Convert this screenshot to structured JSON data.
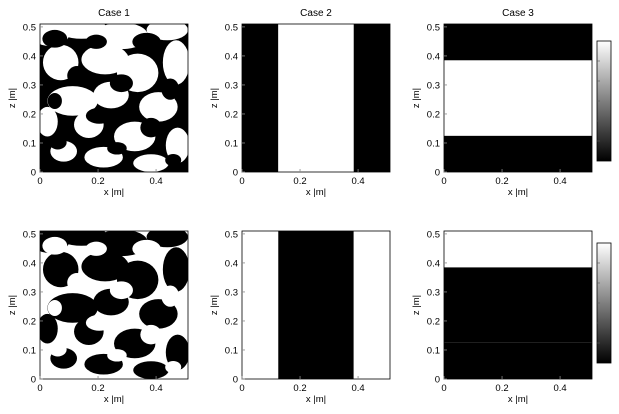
{
  "chart_data": [
    {
      "type": "heatmap",
      "title": "Case 1",
      "xlabel": "x |m|",
      "ylabel": "z |m|",
      "xlim": [
        0,
        0.51
      ],
      "ylim": [
        0,
        0.51
      ],
      "xticks": [
        "0",
        "0.2",
        "0.4"
      ],
      "yticks": [
        "0",
        "0.1",
        "0.2",
        "0.3",
        "0.4",
        "0.5"
      ],
      "pattern": "random binary (black/white) field",
      "inverted": false
    },
    {
      "type": "heatmap",
      "title": "Case 2",
      "xlabel": "x |m|",
      "ylabel": "z |m|",
      "xlim": [
        0,
        0.51
      ],
      "ylim": [
        0,
        0.51
      ],
      "xticks": [
        "0",
        "0.2",
        "0.4"
      ],
      "yticks": [
        "0",
        "0.1",
        "0.2",
        "0.3",
        "0.4",
        "0.5"
      ],
      "pattern": "vertical layers",
      "layers": [
        {
          "from": 0,
          "to": 0.125,
          "color": "black"
        },
        {
          "from": 0.125,
          "to": 0.385,
          "color": "white"
        },
        {
          "from": 0.385,
          "to": 0.51,
          "color": "black"
        }
      ]
    },
    {
      "type": "heatmap",
      "title": "Case 3",
      "xlabel": "x |m|",
      "ylabel": "z |m|",
      "xlim": [
        0,
        0.51
      ],
      "ylim": [
        0,
        0.51
      ],
      "xticks": [
        "0",
        "0.2",
        "0.4"
      ],
      "yticks": [
        "0",
        "0.1",
        "0.2",
        "0.3",
        "0.4",
        "0.5"
      ],
      "pattern": "horizontal layers",
      "layers": [
        {
          "from": 0,
          "to": 0.125,
          "color": "black"
        },
        {
          "from": 0.125,
          "to": 0.385,
          "color": "white"
        },
        {
          "from": 0.385,
          "to": 0.51,
          "color": "black"
        }
      ],
      "colorbar": true
    },
    {
      "type": "heatmap",
      "title": "",
      "xlabel": "x |m|",
      "ylabel": "z |m|",
      "xlim": [
        0,
        0.51
      ],
      "ylim": [
        0,
        0.51
      ],
      "xticks": [
        "0",
        "0.2",
        "0.4"
      ],
      "yticks": [
        "0",
        "0.1",
        "0.2",
        "0.3",
        "0.4",
        "0.5"
      ],
      "pattern": "random binary (black/white) field",
      "inverted": true
    },
    {
      "type": "heatmap",
      "title": "",
      "xlabel": "x |m|",
      "ylabel": "z |m|",
      "xlim": [
        0,
        0.51
      ],
      "ylim": [
        0,
        0.51
      ],
      "xticks": [
        "0",
        "0.2",
        "0.4"
      ],
      "yticks": [
        "0",
        "0.1",
        "0.2",
        "0.3",
        "0.4",
        "0.5"
      ],
      "pattern": "vertical layers",
      "layers": [
        {
          "from": 0,
          "to": 0.125,
          "color": "white"
        },
        {
          "from": 0.125,
          "to": 0.385,
          "color": "black"
        },
        {
          "from": 0.385,
          "to": 0.51,
          "color": "white"
        }
      ]
    },
    {
      "type": "heatmap",
      "title": "",
      "xlabel": "x |m|",
      "ylabel": "z |m|",
      "xlim": [
        0,
        0.51
      ],
      "ylim": [
        0,
        0.51
      ],
      "xticks": [
        "0",
        "0.2",
        "0.4"
      ],
      "yticks": [
        "0",
        "0.1",
        "0.2",
        "0.3",
        "0.4",
        "0.5"
      ],
      "pattern": "horizontal layers",
      "layers": [
        {
          "from": 0,
          "to": 0.125,
          "color": "black"
        },
        {
          "from": 0.125,
          "to": 0.385,
          "color": "black"
        },
        {
          "from": 0.385,
          "to": 0.51,
          "color": "white"
        }
      ],
      "colorbar": true
    }
  ]
}
